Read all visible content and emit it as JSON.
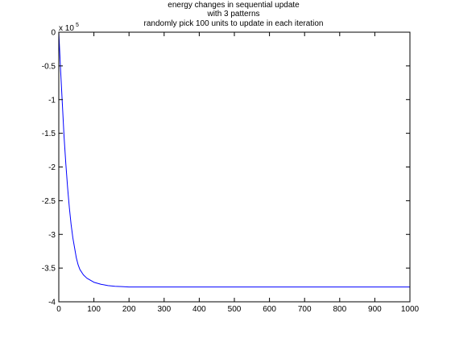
{
  "chart_data": {
    "type": "line",
    "title": [
      "energy changes in sequential update",
      "with 3 patterns",
      "randomly pick 100 units to update in each iteration"
    ],
    "xlabel": "",
    "ylabel": "",
    "xlim": [
      0,
      1000
    ],
    "ylim": [
      -4,
      0
    ],
    "y_multiplier": {
      "base": "x 10",
      "exponent": "5"
    },
    "x_ticks": [
      "0",
      "100",
      "200",
      "300",
      "400",
      "500",
      "600",
      "700",
      "800",
      "900",
      "1000"
    ],
    "x_tick_values": [
      0,
      100,
      200,
      300,
      400,
      500,
      600,
      700,
      800,
      900,
      1000
    ],
    "y_ticks": [
      "0",
      "-0.5",
      "-1",
      "-1.5",
      "-2",
      "-2.5",
      "-3",
      "-3.5",
      "-4"
    ],
    "y_tick_values": [
      0,
      -0.5,
      -1,
      -1.5,
      -2,
      -2.5,
      -3,
      -3.5,
      -4
    ],
    "grid": false,
    "series": [
      {
        "color": "#0000ff",
        "x": [
          0,
          5,
          10,
          15,
          20,
          25,
          30,
          35,
          40,
          45,
          50,
          55,
          60,
          70,
          80,
          90,
          100,
          120,
          140,
          160,
          180,
          200,
          300,
          400,
          500,
          600,
          700,
          800,
          900,
          1000
        ],
        "y": [
          0,
          -0.55,
          -1.05,
          -1.55,
          -1.95,
          -2.3,
          -2.6,
          -2.85,
          -3.05,
          -3.2,
          -3.35,
          -3.45,
          -3.52,
          -3.6,
          -3.65,
          -3.68,
          -3.71,
          -3.74,
          -3.76,
          -3.77,
          -3.775,
          -3.78,
          -3.78,
          -3.78,
          -3.78,
          -3.78,
          -3.78,
          -3.78,
          -3.78,
          -3.78
        ]
      }
    ]
  }
}
